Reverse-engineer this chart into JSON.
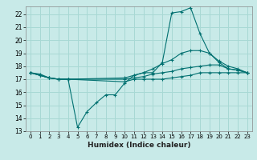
{
  "title": "",
  "xlabel": "Humidex (Indice chaleur)",
  "ylabel": "",
  "bg_color": "#c8eae8",
  "grid_color": "#a8d8d4",
  "line_color": "#007070",
  "xlim": [
    -0.5,
    23.5
  ],
  "ylim": [
    13,
    22.6
  ],
  "yticks": [
    13,
    14,
    15,
    16,
    17,
    18,
    19,
    20,
    21,
    22
  ],
  "xticks": [
    0,
    1,
    2,
    3,
    4,
    5,
    6,
    7,
    8,
    9,
    10,
    11,
    12,
    13,
    14,
    15,
    16,
    17,
    18,
    19,
    20,
    21,
    22,
    23
  ],
  "lines": [
    {
      "x": [
        0,
        1,
        2,
        3,
        4,
        5,
        6,
        7,
        8,
        9,
        10,
        11,
        12,
        13,
        14,
        15,
        16,
        17,
        18,
        19,
        20,
        21,
        22,
        23
      ],
      "y": [
        17.5,
        17.4,
        17.1,
        17.0,
        17.0,
        13.3,
        14.5,
        15.2,
        15.8,
        15.8,
        16.7,
        17.3,
        17.5,
        17.5,
        18.3,
        22.1,
        22.2,
        22.5,
        20.5,
        19.0,
        18.3,
        17.8,
        17.7,
        17.5
      ]
    },
    {
      "x": [
        0,
        1,
        2,
        3,
        4,
        10,
        11,
        12,
        13,
        14,
        15,
        16,
        17,
        18,
        19,
        20,
        21,
        22,
        23
      ],
      "y": [
        17.5,
        17.3,
        17.1,
        17.0,
        17.0,
        17.1,
        17.3,
        17.5,
        17.8,
        18.2,
        18.5,
        19.0,
        19.2,
        19.2,
        19.0,
        18.4,
        18.0,
        17.8,
        17.5
      ]
    },
    {
      "x": [
        0,
        1,
        2,
        3,
        4,
        10,
        11,
        12,
        13,
        14,
        15,
        16,
        17,
        18,
        19,
        20,
        21,
        22,
        23
      ],
      "y": [
        17.5,
        17.3,
        17.1,
        17.0,
        17.0,
        17.0,
        17.1,
        17.2,
        17.4,
        17.5,
        17.6,
        17.8,
        17.9,
        18.0,
        18.1,
        18.1,
        17.8,
        17.7,
        17.5
      ]
    },
    {
      "x": [
        0,
        1,
        2,
        3,
        4,
        10,
        11,
        12,
        13,
        14,
        15,
        16,
        17,
        18,
        19,
        20,
        21,
        22,
        23
      ],
      "y": [
        17.5,
        17.3,
        17.1,
        17.0,
        17.0,
        16.8,
        17.0,
        17.0,
        17.0,
        17.0,
        17.1,
        17.2,
        17.3,
        17.5,
        17.5,
        17.5,
        17.5,
        17.5,
        17.5
      ]
    }
  ]
}
